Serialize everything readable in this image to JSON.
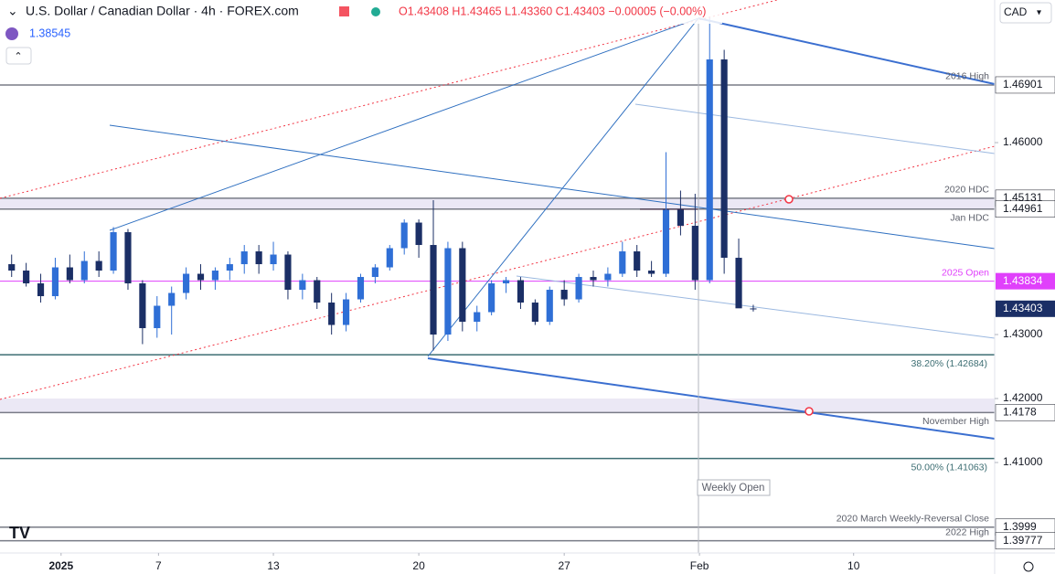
{
  "chart_data": {
    "type": "candlestick",
    "title": "U.S. Dollar / Canadian Dollar · 4h · FOREX.com",
    "ohlc_text": "O1.43408 H1.43465 L1.43360 C1.43403 −0.00005 (−0.00%)",
    "sub_value": "1.38545",
    "currency": "CAD",
    "up_color": "#2f6fd6",
    "down_color": "#1b2f66",
    "categories": [
      null,
      null,
      null,
      null,
      null,
      null,
      null,
      null,
      null,
      null,
      null,
      null,
      null,
      null,
      null,
      null,
      null,
      null,
      null,
      null,
      null,
      null,
      null,
      null,
      null,
      null,
      null,
      null,
      null,
      null,
      null,
      null,
      null,
      null,
      null,
      null,
      null,
      null,
      null,
      null,
      null,
      null,
      null,
      null,
      null,
      null,
      null,
      null,
      null,
      null,
      null,
      null
    ],
    "open": [
      1.441,
      1.44,
      1.438,
      1.436,
      1.4405,
      1.4385,
      1.4415,
      1.44,
      1.446,
      1.438,
      1.431,
      1.4345,
      1.4365,
      1.4395,
      1.4385,
      1.44,
      1.441,
      1.443,
      1.441,
      1.4425,
      1.437,
      1.4385,
      1.435,
      1.4315,
      1.4355,
      1.439,
      1.4405,
      1.4435,
      1.4475,
      1.444,
      1.43,
      1.4435,
      1.432,
      1.4335,
      1.438,
      1.4385,
      1.435,
      1.432,
      1.437,
      1.4355,
      1.439,
      1.4385,
      1.4395,
      1.443,
      1.44,
      1.4395,
      1.4495,
      1.447,
      1.4385,
      1.473,
      1.442,
      1.43408
    ],
    "high": [
      1.4425,
      1.4412,
      1.4395,
      1.442,
      1.4425,
      1.443,
      1.443,
      1.4468,
      1.4465,
      1.4385,
      1.436,
      1.4375,
      1.4405,
      1.441,
      1.4405,
      1.442,
      1.444,
      1.444,
      1.4445,
      1.443,
      1.4395,
      1.439,
      1.4365,
      1.4365,
      1.4395,
      1.441,
      1.444,
      1.448,
      1.448,
      1.451,
      1.4445,
      1.4445,
      1.4345,
      1.4385,
      1.439,
      1.439,
      1.4355,
      1.4375,
      1.4385,
      1.4395,
      1.44,
      1.4405,
      1.4445,
      1.444,
      1.4415,
      1.4585,
      1.4525,
      1.452,
      1.4795,
      1.4745,
      1.445,
      1.43465
    ],
    "low": [
      1.439,
      1.4375,
      1.435,
      1.4355,
      1.438,
      1.438,
      1.439,
      1.4395,
      1.437,
      1.4285,
      1.4295,
      1.43,
      1.4355,
      1.437,
      1.437,
      1.4385,
      1.4395,
      1.4395,
      1.44,
      1.4355,
      1.4355,
      1.434,
      1.43,
      1.4305,
      1.435,
      1.438,
      1.44,
      1.4425,
      1.442,
      1.4275,
      1.429,
      1.4305,
      1.4305,
      1.433,
      1.4365,
      1.434,
      1.4315,
      1.4315,
      1.4345,
      1.435,
      1.4375,
      1.4375,
      1.439,
      1.439,
      1.439,
      1.439,
      1.4455,
      1.437,
      1.438,
      1.4395,
      1.4345,
      1.4336
    ],
    "close": [
      1.44,
      1.438,
      1.436,
      1.4405,
      1.4385,
      1.4415,
      1.44,
      1.446,
      1.438,
      1.431,
      1.4345,
      1.4365,
      1.4395,
      1.4385,
      1.44,
      1.441,
      1.443,
      1.441,
      1.4425,
      1.437,
      1.4385,
      1.435,
      1.4315,
      1.4355,
      1.439,
      1.4405,
      1.4435,
      1.4475,
      1.444,
      1.43,
      1.4435,
      1.432,
      1.4335,
      1.438,
      1.4385,
      1.435,
      1.432,
      1.437,
      1.4355,
      1.439,
      1.4385,
      1.4395,
      1.443,
      1.44,
      1.4395,
      1.4495,
      1.447,
      1.4385,
      1.473,
      1.442,
      1.4341,
      1.43403
    ],
    "xlim": [
      -0.8,
      67.6
    ],
    "xticks": [
      {
        "value": 3.4,
        "label": "2025"
      },
      {
        "value": 10.1,
        "label": "7"
      },
      {
        "value": 18,
        "label": "13"
      },
      {
        "value": 28,
        "label": "20"
      },
      {
        "value": 38,
        "label": "27"
      },
      {
        "value": 47.3,
        "label": "Feb"
      },
      {
        "value": 57.9,
        "label": "10"
      }
    ],
    "ylim": [
      1.39586,
      1.48229
    ],
    "yticks": [
      {
        "value": 1.46,
        "label": "1.46000"
      },
      {
        "value": 1.43,
        "label": "1.43000"
      },
      {
        "value": 1.42,
        "label": "1.42000"
      },
      {
        "value": 1.41,
        "label": "1.41000"
      }
    ],
    "levels": [
      {
        "name": "2016 High",
        "value": 1.46901,
        "color": "#787b86",
        "tag": true
      },
      {
        "name": "2020 HDC",
        "value": 1.45131,
        "color": "#787b86",
        "tag": true
      },
      {
        "name": "Jan HDC",
        "value": 1.44961,
        "color": "#787b86",
        "tag": true
      },
      {
        "name": "2025 Open",
        "value": 1.43834,
        "color": "#e040fb",
        "tag": true
      },
      {
        "name": "38.20% (1.42684)",
        "value": 1.42684,
        "color": "#3d6e73",
        "tag": false
      },
      {
        "name": "November High",
        "value": 1.4178,
        "color": "#787b86",
        "tag": true
      },
      {
        "name": "50.00% (1.41063)",
        "value": 1.41063,
        "color": "#3d6e73",
        "tag": false
      },
      {
        "name": "2020 March Weekly-Reversal Close",
        "value": 1.3999,
        "color": "#787b86",
        "tag": true
      },
      {
        "name": "2022 High",
        "value": 1.39777,
        "color": "#787b86",
        "tag": true
      }
    ],
    "annotation": "Weekly Open"
  }
}
